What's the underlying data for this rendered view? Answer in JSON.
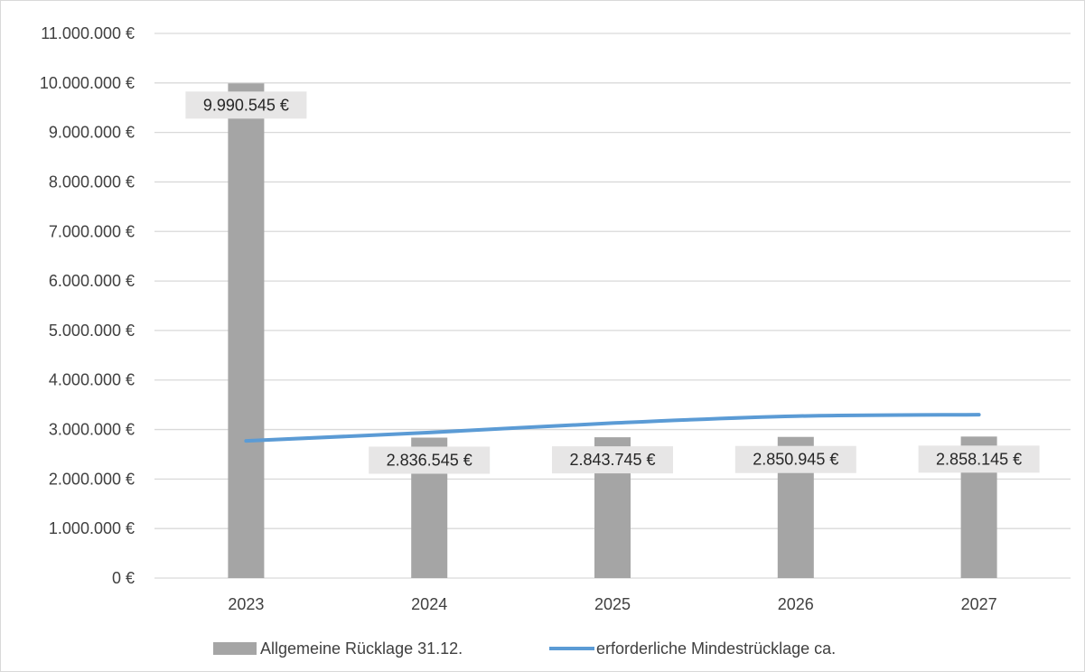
{
  "chart_data": {
    "type": "bar",
    "categories": [
      "2023",
      "2024",
      "2025",
      "2026",
      "2027"
    ],
    "series": [
      {
        "name": "Allgemeine Rücklage 31.12.",
        "kind": "bar",
        "color": "#a5a5a5",
        "values": [
          9990545,
          2836545,
          2843745,
          2850945,
          2858145
        ],
        "labels": [
          "9.990.545 €",
          "2.836.545 €",
          "2.843.745 €",
          "2.850.945 €",
          "2.858.145 €"
        ]
      },
      {
        "name": "erforderliche Mindestrücklage ca.",
        "kind": "line",
        "color": "#5b9bd5",
        "values": [
          2770000,
          2940000,
          3130000,
          3270000,
          3300000
        ]
      }
    ],
    "ylim": [
      0,
      11000000
    ],
    "ytick_values": [
      0,
      1000000,
      2000000,
      3000000,
      4000000,
      5000000,
      6000000,
      7000000,
      8000000,
      9000000,
      10000000,
      11000000
    ],
    "ytick_labels": [
      "0 €",
      "1.000.000 €",
      "2.000.000 €",
      "3.000.000 €",
      "4.000.000 €",
      "5.000.000 €",
      "6.000.000 €",
      "7.000.000 €",
      "8.000.000 €",
      "9.000.000 €",
      "10.000.000 €",
      "11.000.000 €"
    ],
    "grid": true,
    "legend_position": "bottom",
    "label_background": "#e7e6e6",
    "gridline_color": "#d9d9d9"
  }
}
